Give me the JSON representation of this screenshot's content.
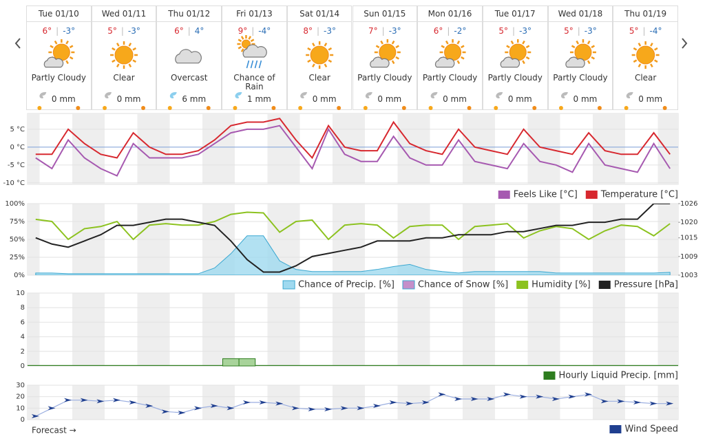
{
  "forecast": {
    "days": [
      {
        "date": "Tue 01/10",
        "high": "6°",
        "low": "-3°",
        "condition": "Partly Cloudy",
        "precip": "0 mm"
      },
      {
        "date": "Wed 01/11",
        "high": "5°",
        "low": "-3°",
        "condition": "Clear",
        "precip": "0 mm"
      },
      {
        "date": "Thu 01/12",
        "high": "6°",
        "low": "4°",
        "condition": "Overcast",
        "precip": "6 mm"
      },
      {
        "date": "Fri 01/13",
        "high": "9°",
        "low": "-4°",
        "condition": "Chance of Rain",
        "precip": "1 mm"
      },
      {
        "date": "Sat 01/14",
        "high": "8°",
        "low": "-3°",
        "condition": "Clear",
        "precip": "0 mm"
      },
      {
        "date": "Sun 01/15",
        "high": "7°",
        "low": "-3°",
        "condition": "Partly Cloudy",
        "precip": "0 mm"
      },
      {
        "date": "Mon 01/16",
        "high": "6°",
        "low": "-2°",
        "condition": "Partly Cloudy",
        "precip": "0 mm"
      },
      {
        "date": "Tue 01/17",
        "high": "5°",
        "low": "-3°",
        "condition": "Partly Cloudy",
        "precip": "0 mm"
      },
      {
        "date": "Wed 01/18",
        "high": "5°",
        "low": "-3°",
        "condition": "Partly Cloudy",
        "precip": "0 mm"
      },
      {
        "date": "Thu 01/19",
        "high": "5°",
        "low": "-4°",
        "condition": "Clear",
        "precip": "0 mm"
      }
    ]
  },
  "chart_data": [
    {
      "type": "line",
      "ylim": [
        -10.4,
        9.4
      ],
      "yticks": [
        {
          "value": 5,
          "label": "5 °C"
        },
        {
          "value": 0,
          "label": "0 °C"
        },
        {
          "value": -5,
          "label": "-5 °C"
        },
        {
          "value": -10,
          "label": "-10 °C"
        }
      ],
      "series": [
        {
          "name": "Feels Like [°C]",
          "color": "#a659b0",
          "values": [
            -3,
            -6,
            2,
            -3,
            -6,
            -8,
            1,
            -3,
            -3,
            -3,
            -2,
            1,
            4,
            5,
            5,
            6,
            0,
            -6,
            5,
            -2,
            -4,
            -4,
            3,
            -3,
            -5,
            -5,
            2,
            -4,
            -5,
            -6,
            1,
            -4,
            -5,
            -7,
            1,
            -5,
            -6,
            -7,
            1,
            -6
          ]
        },
        {
          "name": "Temperature [°C]",
          "color": "#d7282f",
          "values": [
            -2,
            -2,
            5,
            1,
            -2,
            -3,
            4,
            0,
            -2,
            -2,
            -1,
            2,
            6,
            7,
            7,
            8,
            2,
            -3,
            6,
            0,
            -1,
            -1,
            7,
            1,
            -1,
            -2,
            5,
            0,
            -1,
            -2,
            5,
            0,
            -1,
            -2,
            4,
            -1,
            -2,
            -2,
            4,
            -2
          ]
        }
      ]
    },
    {
      "type": "line",
      "ylim": [
        0,
        100
      ],
      "yticks": [
        {
          "value": 100,
          "label": "100%"
        },
        {
          "value": 75,
          "label": "75%"
        },
        {
          "value": 50,
          "label": "50%"
        },
        {
          "value": 25,
          "label": "25%"
        },
        {
          "value": 0,
          "label": "0%"
        }
      ],
      "y2lim": [
        1003,
        1026
      ],
      "y2ticks": [
        1026,
        1020,
        1015,
        1009,
        1003
      ],
      "series": [
        {
          "name": "Chance of Precip. [%]",
          "color": "#9fd9ef",
          "style": "area",
          "values": [
            3,
            3,
            2,
            2,
            2,
            2,
            2,
            2,
            2,
            2,
            2,
            10,
            30,
            55,
            55,
            20,
            8,
            5,
            5,
            5,
            5,
            8,
            12,
            15,
            8,
            5,
            3,
            5,
            5,
            5,
            5,
            5,
            3,
            3,
            3,
            3,
            3,
            3,
            3,
            4
          ]
        },
        {
          "name": "Chance of Snow [%]",
          "color": "#c58fc9",
          "style": "area",
          "values": [
            0,
            0,
            0,
            0,
            0,
            0,
            0,
            0,
            0,
            0,
            0,
            0,
            0,
            0,
            0,
            0,
            0,
            0,
            0,
            0,
            0,
            0,
            0,
            0,
            0,
            0,
            0,
            0,
            0,
            0,
            0,
            0,
            0,
            0,
            0,
            0,
            0,
            0,
            0,
            0
          ]
        },
        {
          "name": "Humidity [%]",
          "color": "#8cc21f",
          "values": [
            78,
            75,
            50,
            65,
            68,
            75,
            50,
            70,
            72,
            70,
            70,
            75,
            85,
            88,
            87,
            60,
            75,
            77,
            50,
            70,
            72,
            70,
            52,
            68,
            70,
            70,
            50,
            68,
            70,
            72,
            52,
            62,
            68,
            65,
            50,
            62,
            70,
            68,
            55,
            72
          ]
        },
        {
          "name": "Pressure [hPa]",
          "color": "#222222",
          "axis": "y2",
          "values": [
            1015,
            1013,
            1012,
            1014,
            1016,
            1019,
            1019,
            1020,
            1021,
            1021,
            1020,
            1019,
            1014,
            1008,
            1004,
            1004,
            1006,
            1009,
            1010,
            1011,
            1012,
            1014,
            1014,
            1014,
            1015,
            1015,
            1016,
            1016,
            1016,
            1017,
            1017,
            1018,
            1019,
            1019,
            1020,
            1020,
            1021,
            1021,
            1026,
            1026
          ]
        }
      ]
    },
    {
      "type": "bar",
      "ylim": [
        0,
        10
      ],
      "yticks": [
        0,
        2,
        4,
        6,
        8,
        10
      ],
      "series": [
        {
          "name": "Hourly Liquid Precip. [mm]",
          "color": "#2e7d1f",
          "values": [
            0,
            0,
            0,
            0,
            0,
            0,
            0,
            0,
            0,
            0,
            0,
            0,
            1,
            1,
            0,
            0,
            0,
            0,
            0,
            0,
            0,
            0,
            0,
            0,
            0,
            0,
            0,
            0,
            0,
            0,
            0,
            0,
            0,
            0,
            0,
            0,
            0,
            0,
            0,
            0
          ]
        }
      ]
    },
    {
      "type": "line",
      "ylim": [
        0,
        30
      ],
      "yticks": [
        30,
        20,
        10,
        0
      ],
      "series": [
        {
          "name": "Wind Speed",
          "color": "#1f3f8f",
          "style": "markers",
          "values": [
            3,
            10,
            17,
            17,
            16,
            17,
            15,
            12,
            7,
            6,
            10,
            12,
            10,
            15,
            15,
            14,
            10,
            9,
            9,
            10,
            10,
            12,
            15,
            14,
            15,
            22,
            18,
            18,
            18,
            22,
            20,
            20,
            18,
            20,
            22,
            16,
            16,
            15,
            14,
            14
          ]
        }
      ]
    }
  ],
  "footer": "Forecast →"
}
